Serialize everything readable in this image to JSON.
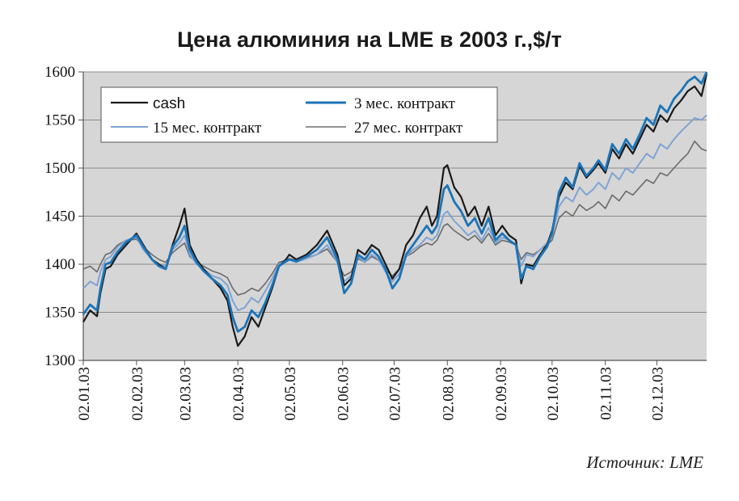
{
  "chart_data": {
    "type": "line",
    "title": "Цена алюминия на LME в 2003 г.,$/т",
    "source": "Источник: LME",
    "ylim": [
      1300,
      1600
    ],
    "y_ticks": [
      "1600",
      "1550",
      "1500",
      "1450",
      "1400",
      "1350",
      "1300"
    ],
    "y_tick_values": [
      1600,
      1550,
      1500,
      1450,
      1400,
      1350,
      1300
    ],
    "x_ticks": [
      "02.01.03",
      "02.02.03",
      "02.03.03",
      "02.04.03",
      "02.05.03",
      "02.06.03",
      "02.07.03",
      "02.08.03",
      "02.09.03",
      "02.10.03",
      "02.11.03",
      "02.12.03"
    ],
    "x_tick_days": [
      0,
      31,
      59,
      90,
      120,
      151,
      181,
      212,
      243,
      273,
      304,
      334
    ],
    "x_range_days": [
      0,
      363
    ],
    "grid": "horizontal",
    "legend": [
      "cash",
      "3 мес. контракт",
      "15 мес. контракт",
      "27 мес. контракт"
    ],
    "series": [
      {
        "name": "cash",
        "color": "#1a1a1a",
        "x": [
          0,
          4,
          8,
          10,
          13,
          16,
          20,
          25,
          31,
          35,
          40,
          44,
          48,
          52,
          56,
          59,
          62,
          66,
          70,
          75,
          80,
          84,
          87,
          90,
          94,
          98,
          102,
          106,
          110,
          114,
          118,
          120,
          124,
          130,
          136,
          142,
          148,
          152,
          156,
          160,
          164,
          168,
          172,
          176,
          180,
          184,
          188,
          192,
          196,
          200,
          203,
          206,
          210,
          212,
          216,
          220,
          224,
          228,
          232,
          236,
          240,
          244,
          248,
          252,
          255,
          258,
          262,
          266,
          270,
          273,
          277,
          281,
          285,
          289,
          293,
          297,
          300,
          304,
          308,
          312,
          316,
          320,
          324,
          328,
          332,
          336,
          340,
          344,
          348,
          352,
          356,
          360,
          363
        ],
        "values": [
          1340,
          1352,
          1346,
          1370,
          1395,
          1398,
          1410,
          1420,
          1432,
          1420,
          1405,
          1400,
          1395,
          1420,
          1440,
          1458,
          1420,
          1405,
          1395,
          1385,
          1375,
          1362,
          1335,
          1315,
          1325,
          1345,
          1335,
          1355,
          1375,
          1398,
          1405,
          1410,
          1405,
          1410,
          1420,
          1435,
          1410,
          1378,
          1385,
          1415,
          1410,
          1420,
          1415,
          1400,
          1385,
          1395,
          1420,
          1430,
          1448,
          1460,
          1440,
          1450,
          1500,
          1503,
          1480,
          1470,
          1450,
          1460,
          1440,
          1460,
          1430,
          1440,
          1430,
          1425,
          1380,
          1400,
          1398,
          1410,
          1420,
          1435,
          1470,
          1485,
          1478,
          1502,
          1490,
          1498,
          1505,
          1495,
          1520,
          1510,
          1525,
          1515,
          1530,
          1545,
          1538,
          1555,
          1548,
          1562,
          1570,
          1580,
          1585,
          1575,
          1598
        ]
      },
      {
        "name": "3 мес. контракт",
        "color": "#1c74b7",
        "x": [
          0,
          4,
          8,
          10,
          13,
          16,
          20,
          25,
          31,
          35,
          40,
          44,
          48,
          52,
          56,
          59,
          62,
          66,
          70,
          75,
          80,
          84,
          87,
          90,
          94,
          98,
          102,
          106,
          110,
          114,
          118,
          120,
          124,
          130,
          136,
          142,
          148,
          152,
          156,
          160,
          164,
          168,
          172,
          176,
          180,
          184,
          188,
          192,
          196,
          200,
          203,
          206,
          210,
          212,
          216,
          220,
          224,
          228,
          232,
          236,
          240,
          244,
          248,
          252,
          255,
          258,
          262,
          266,
          270,
          273,
          277,
          281,
          285,
          289,
          293,
          297,
          300,
          304,
          308,
          312,
          316,
          320,
          324,
          328,
          332,
          336,
          340,
          344,
          348,
          352,
          356,
          360,
          363
        ],
        "values": [
          1348,
          1358,
          1352,
          1375,
          1400,
          1402,
          1413,
          1423,
          1430,
          1418,
          1405,
          1398,
          1395,
          1418,
          1428,
          1440,
          1415,
          1402,
          1393,
          1385,
          1378,
          1368,
          1345,
          1330,
          1335,
          1352,
          1345,
          1360,
          1378,
          1398,
          1403,
          1405,
          1403,
          1408,
          1415,
          1428,
          1405,
          1370,
          1380,
          1410,
          1405,
          1415,
          1408,
          1395,
          1375,
          1385,
          1410,
          1420,
          1430,
          1440,
          1432,
          1440,
          1478,
          1482,
          1465,
          1455,
          1440,
          1448,
          1432,
          1448,
          1425,
          1432,
          1425,
          1420,
          1385,
          1398,
          1395,
          1408,
          1418,
          1432,
          1475,
          1490,
          1480,
          1505,
          1492,
          1500,
          1508,
          1498,
          1525,
          1515,
          1530,
          1520,
          1535,
          1552,
          1545,
          1565,
          1558,
          1572,
          1580,
          1590,
          1595,
          1588,
          1600
        ]
      },
      {
        "name": "15 мес. контракт",
        "color": "#7fa3d3",
        "x": [
          0,
          4,
          8,
          10,
          13,
          16,
          20,
          25,
          31,
          35,
          40,
          44,
          48,
          52,
          56,
          59,
          62,
          66,
          70,
          75,
          80,
          84,
          87,
          90,
          94,
          98,
          102,
          106,
          110,
          114,
          118,
          120,
          124,
          130,
          136,
          142,
          148,
          152,
          156,
          160,
          164,
          168,
          172,
          176,
          180,
          184,
          188,
          192,
          196,
          200,
          203,
          206,
          210,
          212,
          216,
          220,
          224,
          228,
          232,
          236,
          240,
          244,
          248,
          252,
          255,
          258,
          262,
          266,
          270,
          273,
          277,
          281,
          285,
          289,
          293,
          297,
          300,
          304,
          308,
          312,
          316,
          320,
          324,
          328,
          332,
          336,
          340,
          344,
          348,
          352,
          356,
          360,
          363
        ],
        "values": [
          1375,
          1382,
          1378,
          1392,
          1405,
          1408,
          1418,
          1425,
          1428,
          1415,
          1405,
          1400,
          1398,
          1415,
          1422,
          1430,
          1410,
          1400,
          1395,
          1388,
          1385,
          1378,
          1362,
          1352,
          1355,
          1365,
          1360,
          1372,
          1385,
          1400,
          1402,
          1405,
          1402,
          1406,
          1410,
          1420,
          1402,
          1382,
          1388,
          1408,
          1402,
          1410,
          1405,
          1392,
          1382,
          1390,
          1408,
          1415,
          1420,
          1428,
          1425,
          1430,
          1452,
          1455,
          1445,
          1438,
          1430,
          1435,
          1425,
          1438,
          1422,
          1428,
          1425,
          1420,
          1398,
          1410,
          1408,
          1415,
          1422,
          1430,
          1460,
          1470,
          1465,
          1480,
          1472,
          1478,
          1485,
          1478,
          1495,
          1488,
          1500,
          1495,
          1505,
          1515,
          1510,
          1525,
          1520,
          1530,
          1538,
          1545,
          1552,
          1550,
          1555
        ]
      },
      {
        "name": "27 мес. контракт",
        "color": "#6b6b6b",
        "x": [
          0,
          4,
          8,
          10,
          13,
          16,
          20,
          25,
          31,
          35,
          40,
          44,
          48,
          52,
          56,
          59,
          62,
          66,
          70,
          75,
          80,
          84,
          87,
          90,
          94,
          98,
          102,
          106,
          110,
          114,
          118,
          120,
          124,
          130,
          136,
          142,
          148,
          152,
          156,
          160,
          164,
          168,
          172,
          176,
          180,
          184,
          188,
          192,
          196,
          200,
          203,
          206,
          210,
          212,
          216,
          220,
          224,
          228,
          232,
          236,
          240,
          244,
          248,
          252,
          255,
          258,
          262,
          266,
          270,
          273,
          277,
          281,
          285,
          289,
          293,
          297,
          300,
          304,
          308,
          312,
          316,
          320,
          324,
          328,
          332,
          336,
          340,
          344,
          348,
          352,
          356,
          360,
          363
        ],
        "values": [
          1395,
          1398,
          1392,
          1400,
          1410,
          1412,
          1420,
          1425,
          1426,
          1418,
          1410,
          1405,
          1402,
          1412,
          1418,
          1422,
          1408,
          1402,
          1398,
          1393,
          1390,
          1386,
          1375,
          1368,
          1370,
          1375,
          1372,
          1380,
          1390,
          1402,
          1404,
          1406,
          1404,
          1407,
          1410,
          1416,
          1402,
          1388,
          1392,
          1406,
          1402,
          1408,
          1404,
          1394,
          1388,
          1395,
          1408,
          1412,
          1418,
          1422,
          1420,
          1425,
          1440,
          1442,
          1435,
          1430,
          1425,
          1430,
          1422,
          1432,
          1420,
          1425,
          1423,
          1420,
          1405,
          1412,
          1410,
          1415,
          1420,
          1425,
          1448,
          1455,
          1450,
          1462,
          1456,
          1460,
          1465,
          1458,
          1472,
          1466,
          1476,
          1472,
          1480,
          1488,
          1484,
          1495,
          1492,
          1500,
          1508,
          1515,
          1528,
          1520,
          1518
        ]
      }
    ]
  }
}
